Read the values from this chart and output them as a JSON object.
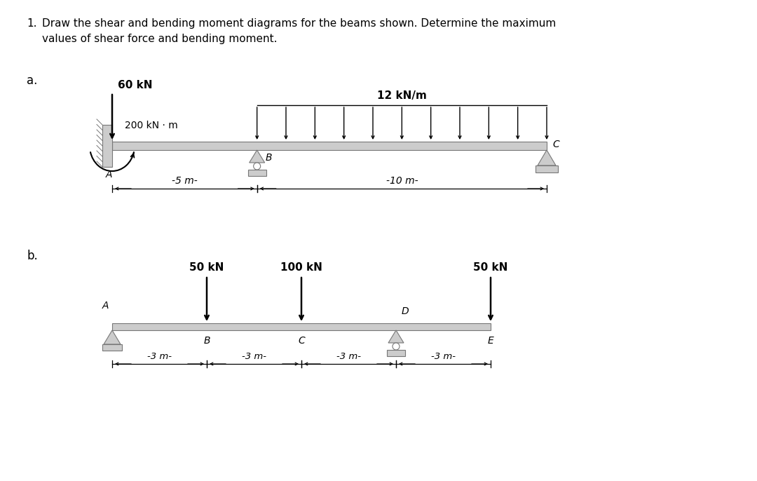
{
  "bg_color": "#ffffff",
  "text_color": "#000000",
  "beam_color": "#c8c8c8",
  "beam_dark": "#888888",
  "title_num": "1.",
  "title_line1": "Draw the shear and bending moment diagrams for the beams shown. Determine the maximum",
  "title_line2": "values of shear force and bending moment.",
  "label_a": "a.",
  "label_b": "b.",
  "beam_a": {
    "point_load_val": "60 kN",
    "moment_val": "200 kN · m",
    "dist_load_val": "12 kN/m",
    "dim_5m": "-5 m-",
    "dim_10m": "-10 m-",
    "label_A": "A",
    "label_B": "B",
    "label_C": "C"
  },
  "beam_b": {
    "load_B_val": "50 kN",
    "load_C_val": "100 kN",
    "load_E_val": "50 kN",
    "label_A": "A",
    "label_B": "B",
    "label_C": "C",
    "label_D": "D",
    "label_E": "E",
    "dim_3m": "-3 m-"
  }
}
